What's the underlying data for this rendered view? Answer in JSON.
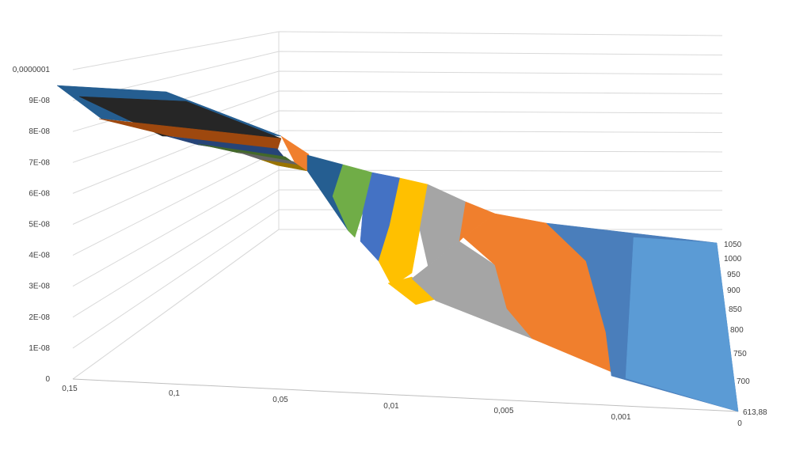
{
  "chart_data": {
    "type": "surface",
    "title": "",
    "z_ticks": [
      "0,0000001",
      "9E-08",
      "8E-08",
      "7E-08",
      "6E-08",
      "5E-08",
      "4E-08",
      "3E-08",
      "2E-08",
      "1E-08",
      "0"
    ],
    "x_ticks": [
      "0,15",
      "0,1",
      "0,05",
      "0,01",
      "0,005",
      "0,001",
      "0"
    ],
    "y_ticks": [
      "1050",
      "1000",
      "950",
      "900",
      "850",
      "800",
      "750",
      "700",
      "613,88"
    ],
    "zlim": [
      0,
      1e-07
    ],
    "grid": true,
    "legend": "none",
    "band_colors": [
      "#4a7ebb",
      "#f07f2d",
      "#a5a5a5",
      "#ffc000",
      "#4472c4",
      "#70ad47",
      "#255e91",
      "#9e480e",
      "#636363",
      "#997300",
      "#264478",
      "#43682b"
    ]
  }
}
